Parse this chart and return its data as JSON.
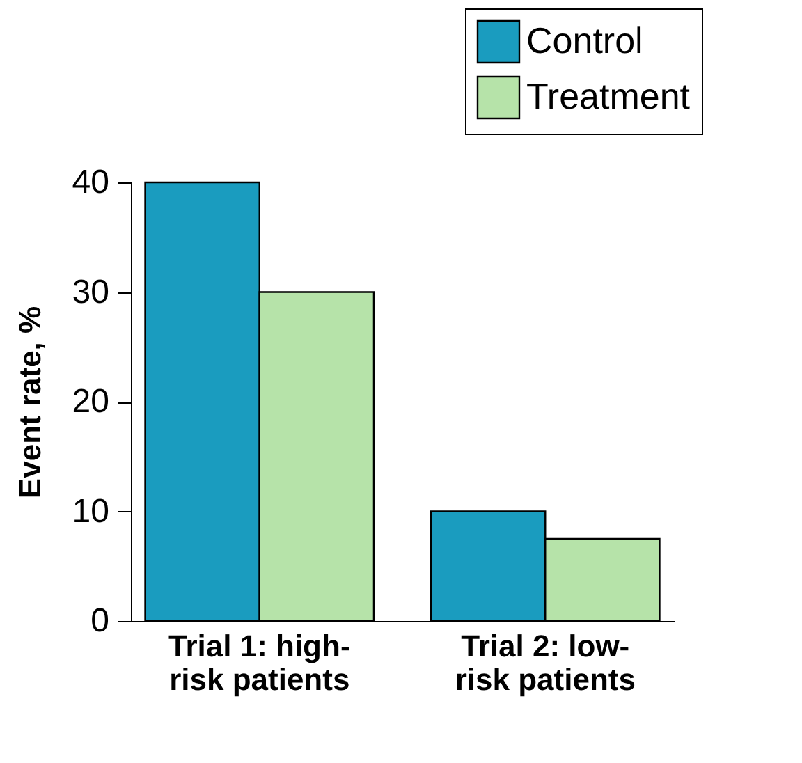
{
  "chart_data": {
    "type": "bar",
    "ylabel": "Event rate, %",
    "categories": [
      "Trial 1: high-risk patients",
      "Trial 2: low-risk patients"
    ],
    "series": [
      {
        "name": "Control",
        "color": "#1a9cbf",
        "values": [
          40,
          10
        ]
      },
      {
        "name": "Treatment",
        "color": "#b6e3a9",
        "values": [
          30,
          7.5
        ]
      }
    ],
    "ylim": [
      0,
      40
    ],
    "yticks": [
      0,
      10,
      20,
      30,
      40
    ],
    "grid": false,
    "legend": "top right"
  }
}
